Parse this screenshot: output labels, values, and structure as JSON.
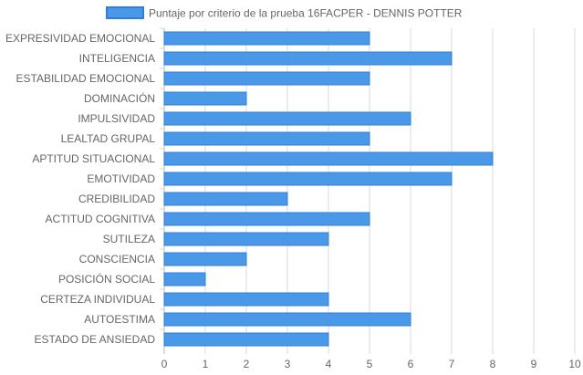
{
  "colors": {
    "bar_fill": "#4a98e8",
    "bar_stroke": "#2f7fd6",
    "grid": "#d9d9d9",
    "axis_text": "#666666"
  },
  "chart_data": {
    "type": "bar",
    "orientation": "horizontal",
    "legend_position": "top",
    "grid": true,
    "xlim": [
      0,
      10
    ],
    "x_ticks": [
      "0",
      "1",
      "2",
      "3",
      "4",
      "5",
      "6",
      "7",
      "8",
      "9",
      "10"
    ],
    "categories": [
      "EXPRESIVIDAD EMOCIONAL",
      "INTELIGENCIA",
      "ESTABILIDAD EMOCIONAL",
      "DOMINACIÓN",
      "IMPULSIVIDAD",
      "LEALTAD GRUPAL",
      "APTITUD SITUACIONAL",
      "EMOTIVIDAD",
      "CREDIBILIDAD",
      "ACTITUD COGNITIVA",
      "SUTILEZA",
      "CONSCIENCIA",
      "POSICIÓN SOCIAL",
      "CERTEZA INDIVIDUAL",
      "AUTOESTIMA",
      "ESTADO DE ANSIEDAD"
    ],
    "series": [
      {
        "name": "Puntaje por criterio de la prueba 16FACPER - DENNIS POTTER",
        "values": [
          5,
          7,
          5,
          2,
          6,
          5,
          8,
          7,
          3,
          5,
          4,
          2,
          1,
          4,
          6,
          4
        ]
      }
    ]
  }
}
